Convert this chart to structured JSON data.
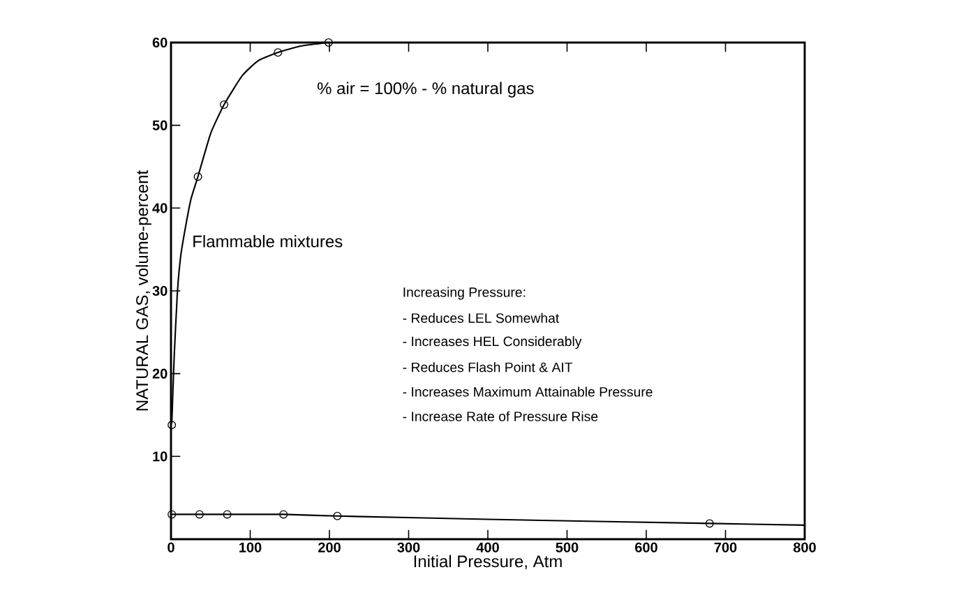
{
  "chart_data": {
    "type": "line",
    "xlabel": "Initial Pressure, Atm",
    "ylabel": "NATURAL GAS, volume-percent",
    "xlim": [
      0,
      800
    ],
    "ylim": [
      0,
      60
    ],
    "xticks": [
      0,
      100,
      200,
      300,
      400,
      500,
      600,
      700,
      800
    ],
    "yticks": [
      10,
      20,
      30,
      40,
      50,
      60
    ],
    "series": [
      {
        "marker": "none",
        "color": "#000000",
        "x": [
          1,
          4,
          8,
          12,
          17,
          25,
          34,
          50,
          67,
          90,
          110,
          135,
          165,
          199
        ],
        "values": [
          14,
          22,
          29.7,
          34,
          37,
          41,
          43.8,
          49,
          52.5,
          56,
          57.8,
          58.8,
          59.6,
          60
        ]
      },
      {
        "type": "scatter",
        "marker": "circle",
        "color": "#000000",
        "x": [
          1,
          34,
          67,
          135,
          199
        ],
        "values": [
          13.8,
          43.8,
          52.5,
          58.8,
          60
        ]
      },
      {
        "marker": "none",
        "color": "#000000",
        "x": [
          1,
          36,
          71,
          142,
          210,
          400,
          680,
          800
        ],
        "values": [
          3,
          3,
          3,
          3,
          2.8,
          2.4,
          1.9,
          1.7
        ]
      },
      {
        "type": "scatter",
        "marker": "circle",
        "color": "#000000",
        "x": [
          1,
          36,
          71,
          142,
          210,
          680
        ],
        "values": [
          3,
          3,
          3,
          3,
          2.8,
          1.9
        ]
      }
    ],
    "annotations": [
      "% air = 100% - % natural gas",
      "Flammable mixtures",
      "Increasing Pressure:",
      "- Reduces LEL Somewhat",
      "- Increases HEL Considerably",
      "- Reduces Flash Point & AIT",
      "- Increases Maximum Attainable Pressure",
      "- Increase Rate of Pressure Rise"
    ]
  }
}
